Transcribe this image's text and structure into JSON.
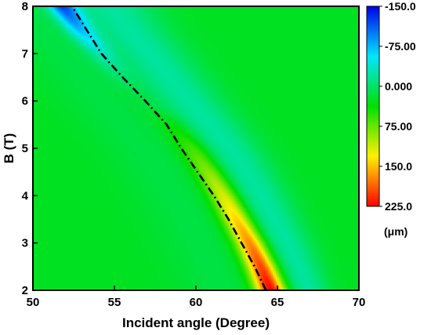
{
  "chart_data": {
    "type": "heatmap",
    "title": "",
    "xlabel": "Incident angle (Degree)",
    "ylabel": "B (T)",
    "xlim": [
      50,
      70
    ],
    "ylim": [
      2,
      8
    ],
    "x_ticks": [
      "50",
      "55",
      "60",
      "65",
      "70"
    ],
    "y_ticks": [
      "2",
      "3",
      "4",
      "5",
      "6",
      "7",
      "8"
    ],
    "colorbar": {
      "range": [
        -150,
        225
      ],
      "reversed": true,
      "tick_values": [
        -150,
        -75,
        0,
        75,
        150,
        225
      ],
      "tick_labels": [
        "-150.0",
        "-75.00",
        "0.000",
        "75.00",
        "150.0",
        "225.0"
      ],
      "unit": "(μm)",
      "colors": [
        "#0000e8",
        "#00e6ff",
        "#00e000",
        "#ffef00",
        "#ff0000"
      ]
    },
    "background_value": 25,
    "peak_ridge": {
      "B": [
        2.0,
        2.5,
        3.0,
        3.5,
        4.0,
        4.5,
        5.0,
        5.5,
        6.0,
        6.5,
        7.0,
        7.5,
        8.0
      ],
      "angle": [
        64.5,
        63.9,
        63.2,
        62.4,
        61.6,
        60.7,
        59.7,
        58.5,
        57.2,
        56.0,
        54.8,
        53.5,
        52.4
      ]
    },
    "series": [
      {
        "style": "dash-dot",
        "color": "#000000",
        "x": [
          64.3,
          63.6,
          62.8,
          62.0,
          61.1,
          60.1,
          59.1,
          58.2,
          56.9,
          55.5,
          54.2,
          53.3,
          52.4
        ],
        "y": [
          2.0,
          2.5,
          3.0,
          3.5,
          4.0,
          4.5,
          5.0,
          5.5,
          6.0,
          6.5,
          7.0,
          7.5,
          8.0
        ]
      }
    ]
  }
}
